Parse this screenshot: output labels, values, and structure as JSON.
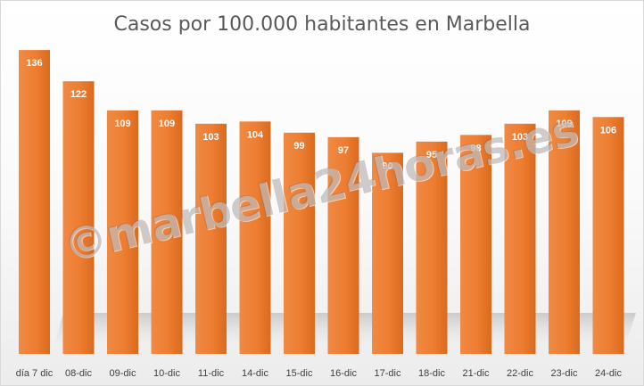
{
  "chart_data": {
    "type": "bar",
    "title": "Casos por 100.000 habitantes en Marbella",
    "categories": [
      "día 7 dic",
      "08-dic",
      "09-dic",
      "10-dic",
      "11-dic",
      "14-dic",
      "15-dic",
      "16-dic",
      "17-dic",
      "18-dic",
      "21-dic",
      "22-dic",
      "23-dic",
      "24-dic"
    ],
    "values": [
      136,
      122,
      109,
      109,
      103,
      104,
      99,
      97,
      90,
      95,
      98,
      103,
      109,
      106
    ],
    "data_labels": [
      "136",
      "122",
      "109",
      "109",
      "103",
      "104",
      "99",
      "97",
      "90",
      "95",
      "98",
      "103",
      "109",
      "106"
    ],
    "xlabel": "",
    "ylabel": "",
    "ylim": [
      0,
      150
    ],
    "grid": false,
    "legend": "none",
    "colors": {
      "bar": "#ED7D31",
      "bar_label": "#ffffff",
      "tick_label": "#404040",
      "title": "#595959"
    }
  },
  "watermark": "©marbella24horas.es"
}
